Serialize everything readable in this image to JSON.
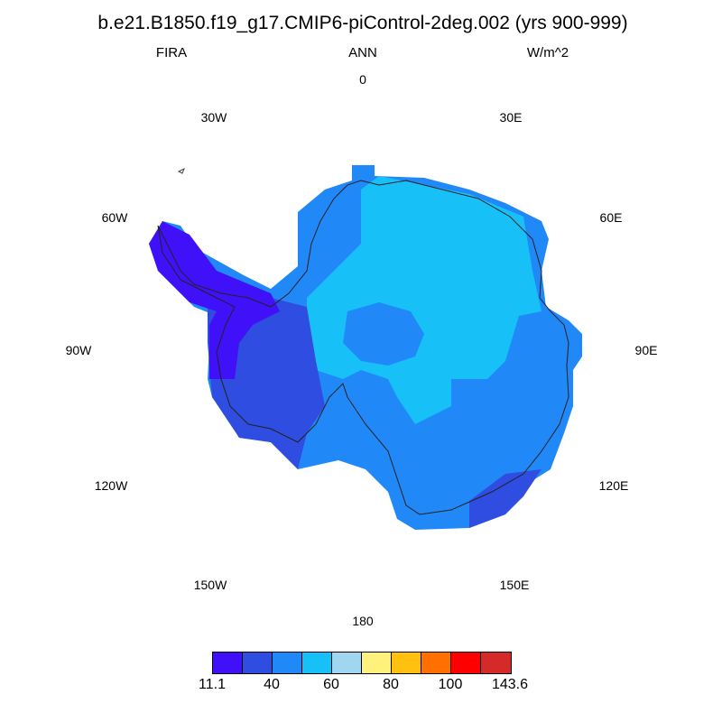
{
  "title": "b.e21.B1850.f19_g17.CMIP6-piControl-2deg.002 (yrs 900-999)",
  "left_string": "FIRA",
  "center_string": "ANN",
  "right_string": "W/m^2",
  "longitude_labels": [
    "0",
    "30E",
    "60E",
    "90E",
    "120E",
    "150E",
    "180",
    "150W",
    "120W",
    "90W",
    "60W",
    "30W"
  ],
  "colorbar": {
    "colors": [
      "#4010f8",
      "#2f4de0",
      "#2188f8",
      "#18c0f8",
      "#a0d6f0",
      "#fff27c",
      "#ffc010",
      "#ff7000",
      "#ff0000",
      "#d42a2a"
    ],
    "labels": [
      "11.1",
      "40",
      "60",
      "80",
      "100",
      "143.6"
    ]
  },
  "map": {
    "projection": "south polar stereographic",
    "region": "Antarctica"
  }
}
